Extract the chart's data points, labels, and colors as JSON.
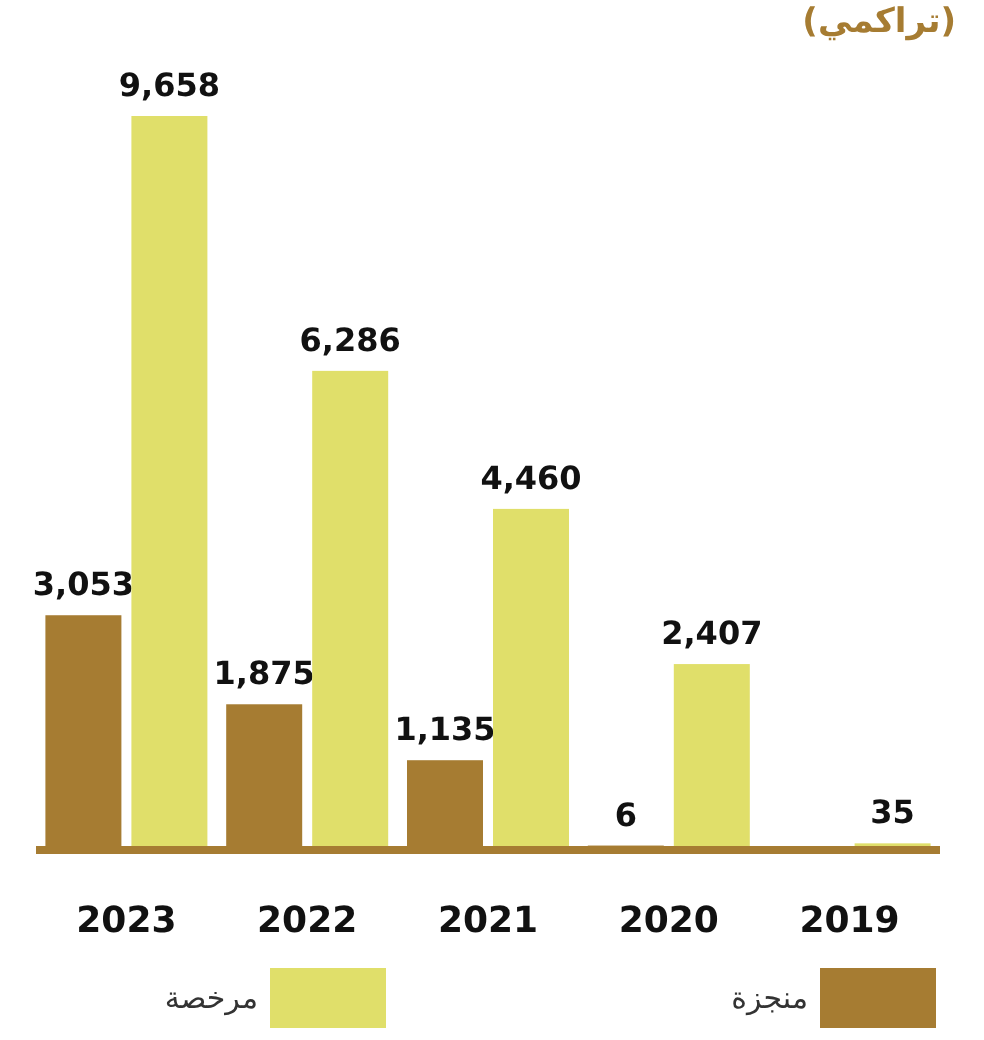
{
  "chart_data": {
    "type": "bar",
    "title": "(تراكمي)",
    "categories": [
      "2023",
      "2022",
      "2021",
      "2020",
      "2019"
    ],
    "series": [
      {
        "name": "منجزة",
        "color": "#a67c32",
        "values": [
          3053,
          1875,
          1135,
          6,
          null
        ],
        "value_labels": [
          "3,053",
          "1,875",
          "1,135",
          "6",
          null
        ]
      },
      {
        "name": "مرخصة",
        "color": "#e0df6a",
        "values": [
          9658,
          6286,
          4460,
          2407,
          35
        ],
        "value_labels": [
          "9,658",
          "6,286",
          "4,460",
          "2,407",
          "35"
        ]
      }
    ],
    "legend": "bottom"
  }
}
